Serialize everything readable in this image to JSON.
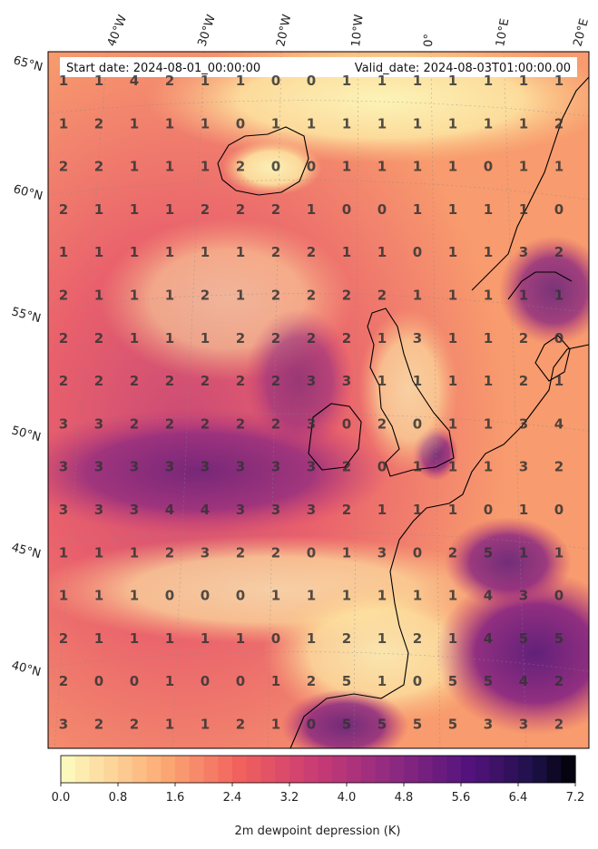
{
  "map": {
    "start_label": "Start date: 2024-08-01_00:00:00",
    "valid_label": "Valid_date: 2024-08-03T01:00:00.00",
    "lon_labels": [
      "40°W",
      "30°W",
      "20°W",
      "10°W",
      "0°",
      "10°E",
      "20°E"
    ],
    "lat_labels": [
      "65°N",
      "60°N",
      "55°N",
      "50°N",
      "45°N",
      "40°N"
    ],
    "grid_values": [
      [
        1,
        1,
        4,
        2,
        1,
        1,
        0,
        0,
        1,
        1,
        1,
        1,
        1,
        1,
        1
      ],
      [
        1,
        2,
        1,
        1,
        1,
        0,
        1,
        1,
        1,
        1,
        1,
        1,
        1,
        1,
        2
      ],
      [
        2,
        2,
        1,
        1,
        1,
        2,
        0,
        0,
        1,
        1,
        1,
        1,
        0,
        1,
        1
      ],
      [
        2,
        1,
        1,
        1,
        2,
        2,
        2,
        1,
        0,
        0,
        1,
        1,
        1,
        1,
        0
      ],
      [
        1,
        1,
        1,
        1,
        1,
        1,
        2,
        2,
        1,
        1,
        0,
        1,
        1,
        3,
        2
      ],
      [
        2,
        1,
        1,
        1,
        2,
        1,
        2,
        2,
        2,
        2,
        1,
        1,
        1,
        1,
        1
      ],
      [
        2,
        2,
        1,
        1,
        1,
        2,
        2,
        2,
        2,
        1,
        3,
        1,
        1,
        2,
        0
      ],
      [
        2,
        2,
        2,
        2,
        2,
        2,
        2,
        3,
        3,
        1,
        1,
        1,
        1,
        2,
        1
      ],
      [
        3,
        3,
        2,
        2,
        2,
        2,
        2,
        3,
        0,
        2,
        0,
        1,
        1,
        3,
        4
      ],
      [
        3,
        3,
        3,
        3,
        3,
        3,
        3,
        3,
        2,
        0,
        1,
        1,
        1,
        3,
        2
      ],
      [
        3,
        3,
        3,
        4,
        4,
        3,
        3,
        3,
        2,
        1,
        1,
        1,
        0,
        1,
        0
      ],
      [
        1,
        1,
        1,
        2,
        3,
        2,
        2,
        0,
        1,
        3,
        0,
        2,
        5,
        1,
        1
      ],
      [
        1,
        1,
        1,
        0,
        0,
        0,
        1,
        1,
        1,
        1,
        1,
        1,
        4,
        3,
        0
      ],
      [
        2,
        1,
        1,
        1,
        1,
        1,
        0,
        1,
        2,
        1,
        2,
        1,
        4,
        5,
        5
      ],
      [
        2,
        0,
        0,
        1,
        0,
        0,
        1,
        2,
        5,
        1,
        0,
        5,
        5,
        4,
        2
      ],
      [
        3,
        2,
        2,
        1,
        1,
        2,
        1,
        0,
        5,
        5,
        5,
        5,
        3,
        3,
        2
      ]
    ],
    "colors": {
      "low": "#fcfdbf",
      "mid": "#f1605d",
      "high": "#721f81",
      "max": "#000004"
    }
  },
  "colorbar": {
    "label": "2m dewpoint depression (K)",
    "ticks": [
      "0.0",
      "0.8",
      "1.6",
      "2.4",
      "3.2",
      "4.0",
      "4.8",
      "5.6",
      "6.4",
      "7.2"
    ],
    "min": 0.0,
    "max": 7.2,
    "levels": 36
  }
}
